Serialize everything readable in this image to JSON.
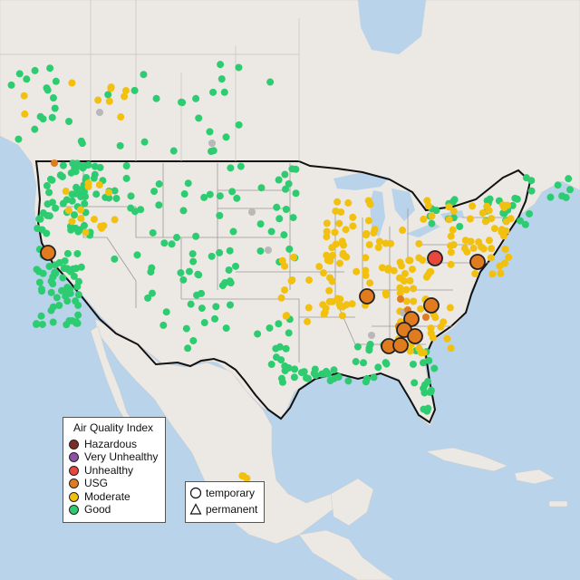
{
  "legend": {
    "title": "Air Quality Index",
    "items": [
      {
        "label": "Hazardous",
        "color": "#7e2d26"
      },
      {
        "label": "Very Unhealthy",
        "color": "#8f52a3"
      },
      {
        "label": "Unhealthy",
        "color": "#e8473b"
      },
      {
        "label": "USG",
        "color": "#e07b1f"
      },
      {
        "label": "Moderate",
        "color": "#f2c10f"
      },
      {
        "label": "Good",
        "color": "#2ecc71"
      }
    ]
  },
  "monitor_types": {
    "items": [
      {
        "label": "temporary",
        "shape": "circle-icon"
      },
      {
        "label": "permanent",
        "shape": "triangle-icon"
      }
    ]
  }
}
